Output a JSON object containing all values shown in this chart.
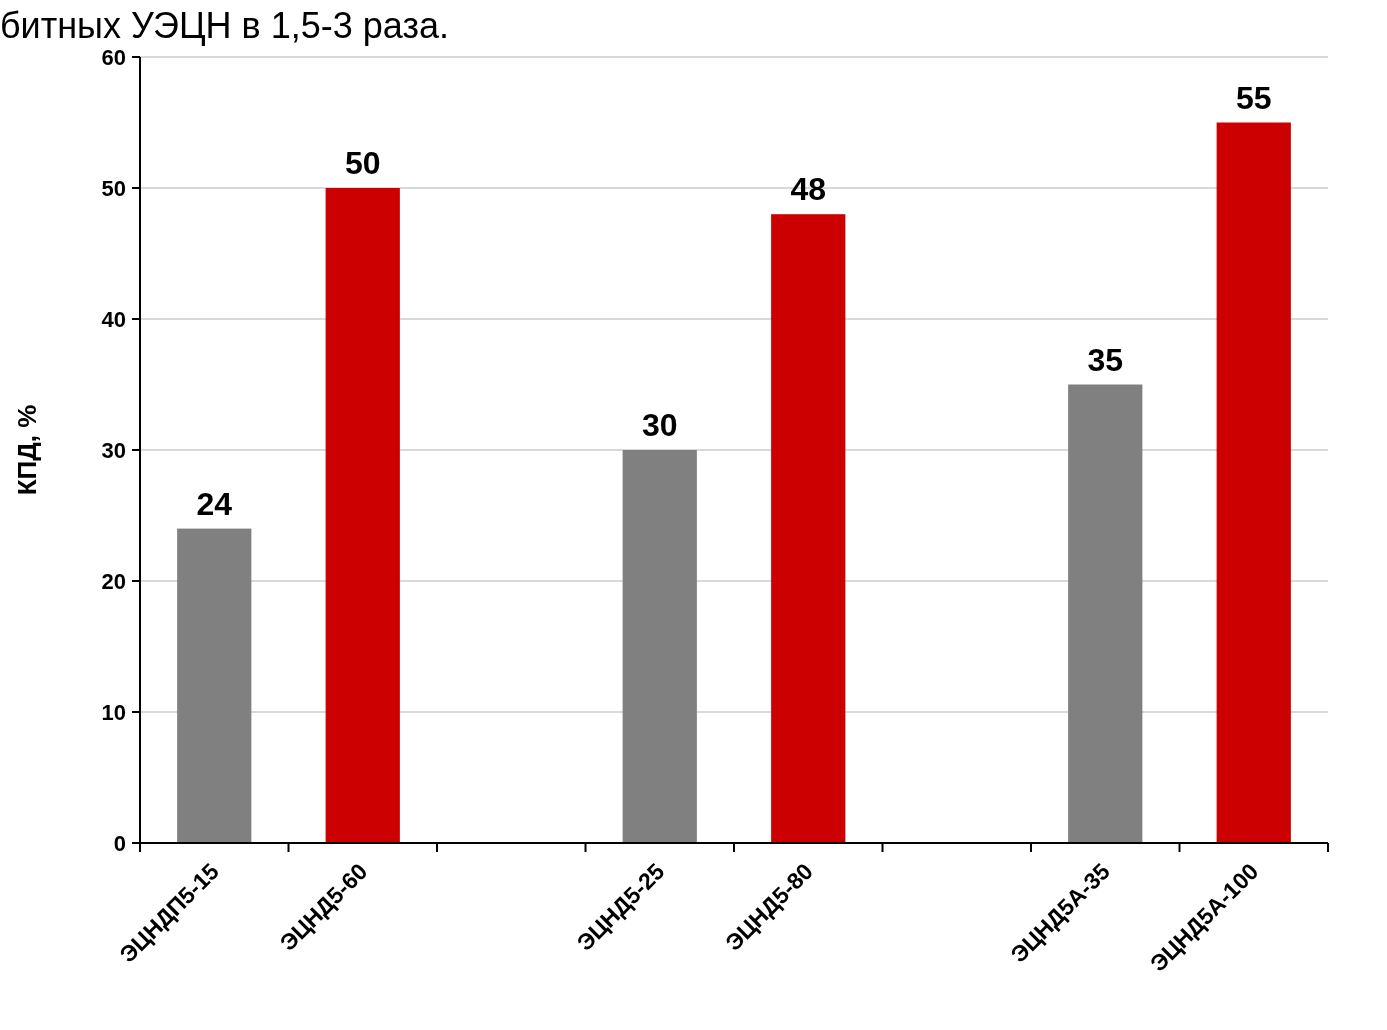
{
  "chart_data": {
    "type": "bar",
    "title": "битных УЭЦН в 1,5-3 раза.",
    "ylabel": "КПД, %",
    "categories": [
      "ЭЦНДП5-15",
      "ЭЦНД5-60",
      null,
      "ЭЦНД5-25",
      "ЭЦНД5-80",
      null,
      "ЭЦНД5А-35",
      "ЭЦНД5А-100"
    ],
    "values": [
      24,
      50,
      null,
      30,
      48,
      null,
      35,
      55
    ],
    "colors": [
      "#808080",
      "#cc0000",
      null,
      "#808080",
      "#cc0000",
      null,
      "#808080",
      "#cc0000"
    ],
    "ylim": [
      0,
      60
    ],
    "yticks": [
      0,
      10,
      20,
      30,
      40,
      50,
      60
    ],
    "grid": "y",
    "data_labels": true
  }
}
